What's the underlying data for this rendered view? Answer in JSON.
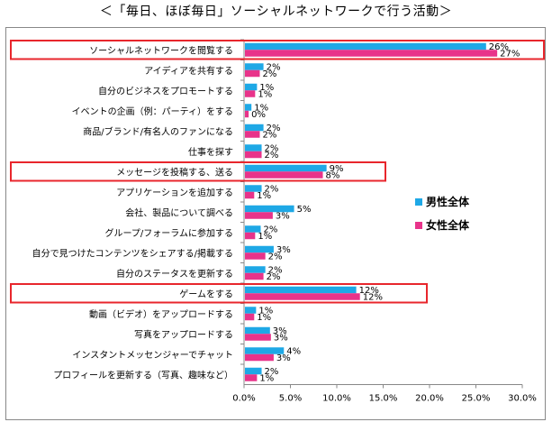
{
  "title": "＜「毎日、ほぼ毎日」ソーシャルネットワークで行う活動＞",
  "chart_data": {
    "type": "bar",
    "orientation": "horizontal",
    "categories": [
      "ソーシャルネットワークを閲覧する",
      "アイディアを共有する",
      "自分のビジネスをプロモートする",
      "イベントの企画（例：パーティ）をする",
      "商品/ブランド/有名人のファンになる",
      "仕事を探す",
      "メッセージを投稿する、送る",
      "アプリケーションを追加する",
      "会社、製品について調べる",
      "グループ/フォーラムに参加する",
      "自分で見つけたコンテンツをシェアする/掲載する",
      "自分のステータスを更新する",
      "ゲームをする",
      "動画（ビデオ）をアップロードする",
      "写真をアップロードする",
      "インスタントメッセンジャーでチャット",
      "プロフィールを更新する（写真、趣味など）"
    ],
    "series": [
      {
        "name": "男性全体",
        "color": "#1EA8E6",
        "values": [
          26.0,
          2.0,
          1.3,
          0.7,
          2.0,
          1.8,
          8.8,
          1.8,
          5.3,
          1.7,
          3.1,
          2.2,
          12.0,
          1.2,
          2.7,
          4.2,
          1.8
        ],
        "labels": [
          "26%",
          "2%",
          "1%",
          "1%",
          "2%",
          "2%",
          "9%",
          "2%",
          "5%",
          "2%",
          "3%",
          "2%",
          "12%",
          "1%",
          "3%",
          "4%",
          "2%"
        ]
      },
      {
        "name": "女性全体",
        "color": "#E8338A",
        "values": [
          27.2,
          1.6,
          1.1,
          0.4,
          1.6,
          1.8,
          8.4,
          1.0,
          3.0,
          1.1,
          2.2,
          2.0,
          12.4,
          1.0,
          2.8,
          3.1,
          1.3
        ],
        "labels": [
          "27%",
          "2%",
          "1%",
          "0%",
          "2%",
          "2%",
          "8%",
          "1%",
          "3%",
          "1%",
          "2%",
          "2%",
          "12%",
          "1%",
          "3%",
          "3%",
          "1%"
        ]
      }
    ],
    "xlim": [
      0,
      30
    ],
    "xticks": [
      "0.0%",
      "5.0%",
      "10.0%",
      "15.0%",
      "20.0%",
      "25.0%",
      "30.0%"
    ],
    "highlighted_categories": [
      0,
      6,
      12
    ],
    "highlight_color": "#E8262C",
    "grid": false,
    "legend_position": "right"
  }
}
